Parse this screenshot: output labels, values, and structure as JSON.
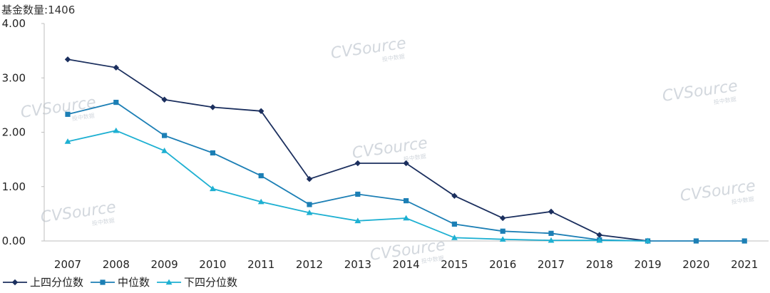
{
  "header": {
    "fund_count_label": "基金数量:",
    "fund_count_value": "1406"
  },
  "watermark": {
    "brand": "CVSource",
    "subtitle": "投中数据"
  },
  "colors": {
    "upper_quartile": "#1b2f5e",
    "median": "#1c7fb5",
    "lower_quartile": "#1eb0d2",
    "axis": "#bfbfbf"
  },
  "chart_data": {
    "type": "line",
    "title": "",
    "xlabel": "",
    "ylabel": "",
    "ylim": [
      0,
      4
    ],
    "y_ticks": [
      "0.00",
      "1.00",
      "2.00",
      "3.00",
      "4.00"
    ],
    "grid": false,
    "legend_position": "bottom-left",
    "categories": [
      "2007",
      "2008",
      "2009",
      "2010",
      "2011",
      "2012",
      "2013",
      "2014",
      "2015",
      "2016",
      "2017",
      "2018",
      "2019",
      "2020",
      "2021"
    ],
    "series": [
      {
        "name": "上四分位数",
        "marker": "diamond",
        "color": "#1b2f5e",
        "values": [
          3.34,
          3.19,
          2.6,
          2.46,
          2.39,
          1.14,
          1.43,
          1.43,
          0.83,
          0.42,
          0.54,
          0.11,
          0.0,
          null,
          null
        ]
      },
      {
        "name": "中位数",
        "marker": "square",
        "color": "#1c7fb5",
        "values": [
          2.33,
          2.55,
          1.94,
          1.62,
          1.2,
          0.67,
          0.86,
          0.74,
          0.31,
          0.18,
          0.14,
          0.02,
          0.0,
          0.0,
          0.0
        ]
      },
      {
        "name": "下四分位数",
        "marker": "triangle",
        "color": "#1eb0d2",
        "values": [
          1.83,
          2.03,
          1.66,
          0.96,
          0.72,
          0.52,
          0.37,
          0.42,
          0.06,
          0.03,
          0.01,
          0.01,
          0.0,
          null,
          null
        ]
      }
    ]
  }
}
